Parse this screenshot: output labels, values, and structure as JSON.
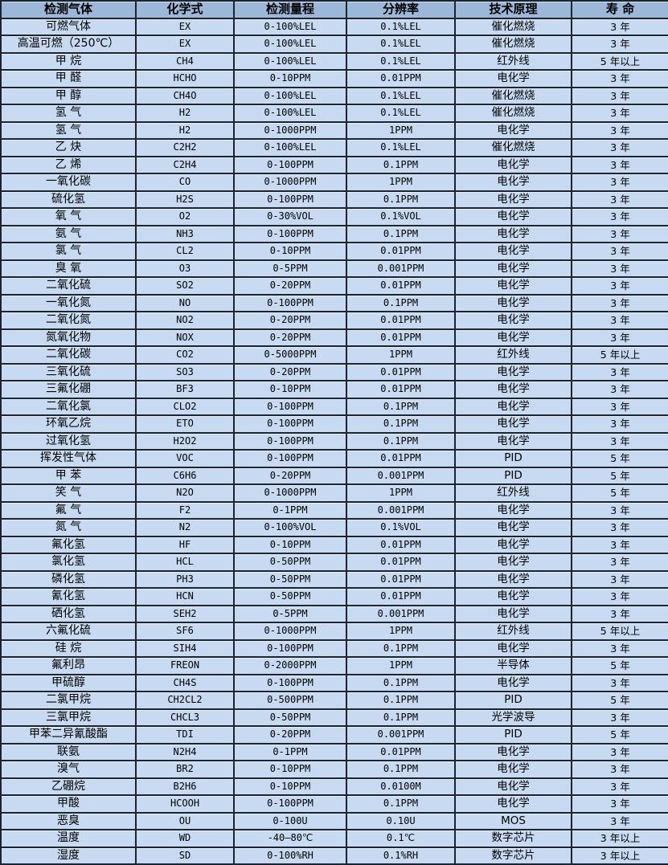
{
  "colors": {
    "header_bg": "#9db7d8",
    "row_bg": "#c7daf1",
    "border": "#1b2430",
    "text": "#000000"
  },
  "table": {
    "columns": [
      "检测气体",
      "化学式",
      "检测量程",
      "分辨率",
      "技术原理",
      "寿 命"
    ],
    "rows": [
      [
        "可燃气体",
        "EX",
        "0-100%LEL",
        "0.1%LEL",
        "催化燃烧",
        "3 年"
      ],
      [
        "高温可燃（250℃）",
        "EX",
        "0-100%LEL",
        "0.1%LEL",
        "催化燃烧",
        "3 年"
      ],
      [
        "甲 烷",
        "CH4",
        "0-100%LEL",
        "0.1%LEL",
        "红外线",
        "5 年以上"
      ],
      [
        "甲 醛",
        "HCHO",
        "0-10PPM",
        "0.01PPM",
        "电化学",
        "3 年"
      ],
      [
        "甲 醇",
        "CH4O",
        "0-100%LEL",
        "0.1%LEL",
        "催化燃烧",
        "3 年"
      ],
      [
        "氢 气",
        "H2",
        "0-100%LEL",
        "0.1%LEL",
        "催化燃烧",
        "3 年"
      ],
      [
        "氢 气",
        "H2",
        "0-1000PPM",
        "1PPM",
        "电化学",
        "3 年"
      ],
      [
        "乙 炔",
        "C2H2",
        "0-100%LEL",
        "0.1%LEL",
        "催化燃烧",
        "3 年"
      ],
      [
        "乙 烯",
        "C2H4",
        "0-100PPM",
        "0.1PPM",
        "电化学",
        "3 年"
      ],
      [
        "一氧化碳",
        "CO",
        "0-1000PPM",
        "1PPM",
        "电化学",
        "3 年"
      ],
      [
        "硫化氢",
        "H2S",
        "0-100PPM",
        "0.1PPM",
        "电化学",
        "3 年"
      ],
      [
        "氧 气",
        "O2",
        "0-30%VOL",
        "0.1%VOL",
        "电化学",
        "3 年"
      ],
      [
        "氨 气",
        "NH3",
        "0-100PPM",
        "0.1PPM",
        "电化学",
        "3 年"
      ],
      [
        "氯 气",
        "CL2",
        "0-10PPM",
        "0.01PPM",
        "电化学",
        "3 年"
      ],
      [
        "臭 氧",
        "O3",
        "0-5PPM",
        "0.001PPM",
        "电化学",
        "3 年"
      ],
      [
        "二氧化硫",
        "SO2",
        "0-20PPM",
        "0.01PPM",
        "电化学",
        "3 年"
      ],
      [
        "一氧化氮",
        "NO",
        "0-100PPM",
        "0.1PPM",
        "电化学",
        "3 年"
      ],
      [
        "二氧化氮",
        "NO2",
        "0-20PPM",
        "0.01PPM",
        "电化学",
        "3 年"
      ],
      [
        "氮氧化物",
        "NOX",
        "0-20PPM",
        "0.01PPM",
        "电化学",
        "3 年"
      ],
      [
        "二氧化碳",
        "CO2",
        "0-5000PPM",
        "1PPM",
        "红外线",
        "5 年以上"
      ],
      [
        "三氧化硫",
        "SO3",
        "0-20PPM",
        "0.01PPM",
        "电化学",
        "3 年"
      ],
      [
        "三氟化硼",
        "BF3",
        "0-10PPM",
        "0.01PPM",
        "电化学",
        "3 年"
      ],
      [
        "二氧化氯",
        "CLO2",
        "0-100PPM",
        "0.1PPM",
        "电化学",
        "3 年"
      ],
      [
        "环氧乙烷",
        "ETO",
        "0-100PPM",
        "0.1PPM",
        "电化学",
        "3 年"
      ],
      [
        "过氧化氢",
        "H2O2",
        "0-100PPM",
        "0.1PPM",
        "电化学",
        "3 年"
      ],
      [
        "挥发性气体",
        "VOC",
        "0-100PPM",
        "0.01PPM",
        "PID",
        "5 年"
      ],
      [
        "甲 苯",
        "C6H6",
        "0-20PPM",
        "0.001PPM",
        "PID",
        "5 年"
      ],
      [
        "笑 气",
        "N2O",
        "0-1000PPM",
        "1PPM",
        "红外线",
        "5 年"
      ],
      [
        "氟 气",
        "F2",
        "0-1PPM",
        "0.001PPM",
        "电化学",
        "3 年"
      ],
      [
        "氮 气",
        "N2",
        "0-100%VOL",
        "0.1%VOL",
        "电化学",
        "3 年"
      ],
      [
        "氟化氢",
        "HF",
        "0-10PPM",
        "0.01PPM",
        "电化学",
        "3 年"
      ],
      [
        "氯化氢",
        "HCL",
        "0-50PPM",
        "0.01PPM",
        "电化学",
        "3 年"
      ],
      [
        "磷化氢",
        "PH3",
        "0-50PPM",
        "0.01PPM",
        "电化学",
        "3 年"
      ],
      [
        "氰化氢",
        "HCN",
        "0-50PPM",
        "0.01PPM",
        "电化学",
        "3 年"
      ],
      [
        "硒化氢",
        "SEH2",
        "0-5PPM",
        "0.001PPM",
        "电化学",
        "3 年"
      ],
      [
        "六氟化硫",
        "SF6",
        "0-1000PPM",
        "1PPM",
        "红外线",
        "5 年以上"
      ],
      [
        "硅 烷",
        "SIH4",
        "0-100PPM",
        "0.1PPM",
        "电化学",
        "3 年"
      ],
      [
        "氟利昂",
        "FREON",
        "0-2000PPM",
        "1PPM",
        "半导体",
        "5 年"
      ],
      [
        "甲硫醇",
        "CH4S",
        "0-100PPM",
        "0.1PPM",
        "电化学",
        "3 年"
      ],
      [
        "二氯甲烷",
        "CH2CL2",
        "0-500PPM",
        "0.1PPM",
        "PID",
        "5 年"
      ],
      [
        "三氯甲烷",
        "CHCL3",
        "0-50PPM",
        "0.1PPM",
        "光学波导",
        "3 年"
      ],
      [
        "甲苯二异氰酸酯",
        "TDI",
        "0-20PPM",
        "0.001PPM",
        "PID",
        "5 年"
      ],
      [
        "联氨",
        "N2H4",
        "0-1PPM",
        "0.01PPM",
        "电化学",
        "3 年"
      ],
      [
        "溴气",
        "BR2",
        "0-10PPM",
        "0.1PPM",
        "电化学",
        "3 年"
      ],
      [
        "乙硼烷",
        "B2H6",
        "0-10PPM",
        "0.0100M",
        "电化学",
        "3 年"
      ],
      [
        "甲酸",
        "HCOOH",
        "0-100PPM",
        "0.1PPM",
        "电化学",
        "3 年"
      ],
      [
        "恶臭",
        "OU",
        "0-100U",
        "0.10U",
        "MOS",
        "3 年"
      ],
      [
        "温度",
        "WD",
        "-40—80℃",
        "0.1℃",
        "数字芯片",
        "3 年以上"
      ],
      [
        "湿度",
        "SD",
        "0-100%RH",
        "0.1%RH",
        "数字芯片",
        "3 年以上"
      ]
    ]
  }
}
